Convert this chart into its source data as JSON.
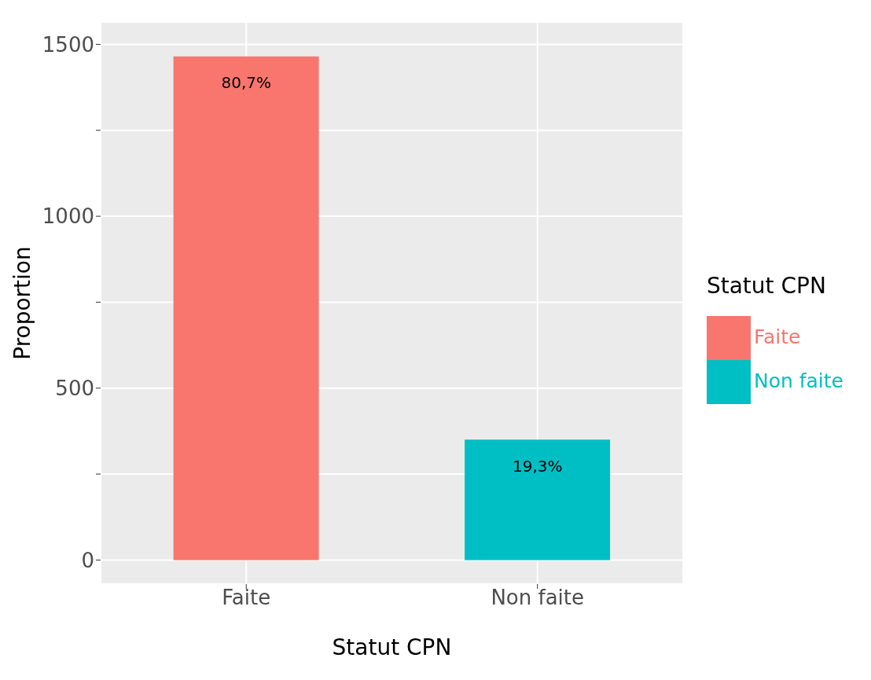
{
  "chart_data": {
    "type": "bar",
    "categories": [
      "Faite",
      "Non faite"
    ],
    "series": [
      {
        "name": "Faite",
        "color": "#f8766d",
        "values": [
          1465,
          null
        ]
      },
      {
        "name": "Non faite",
        "color": "#00bfc4",
        "values": [
          null,
          350
        ]
      }
    ],
    "stacked": true,
    "annotations": [
      {
        "text": "80,7%",
        "x": "Faite",
        "y": 1465
      },
      {
        "text": "19,3%",
        "x": "Non faite",
        "y": 350
      }
    ],
    "xlabel": "Statut CPN",
    "ylabel": "Proportion",
    "legend_title": "Statut CPN",
    "ylim": [
      -70,
      1565
    ],
    "yticks": [
      0,
      {
        "value": 250,
        "label": null
      },
      500,
      {
        "value": 750,
        "label": null
      },
      1000,
      {
        "value": 1250,
        "label": null
      },
      1500
    ],
    "grid": true,
    "legend": "right"
  }
}
